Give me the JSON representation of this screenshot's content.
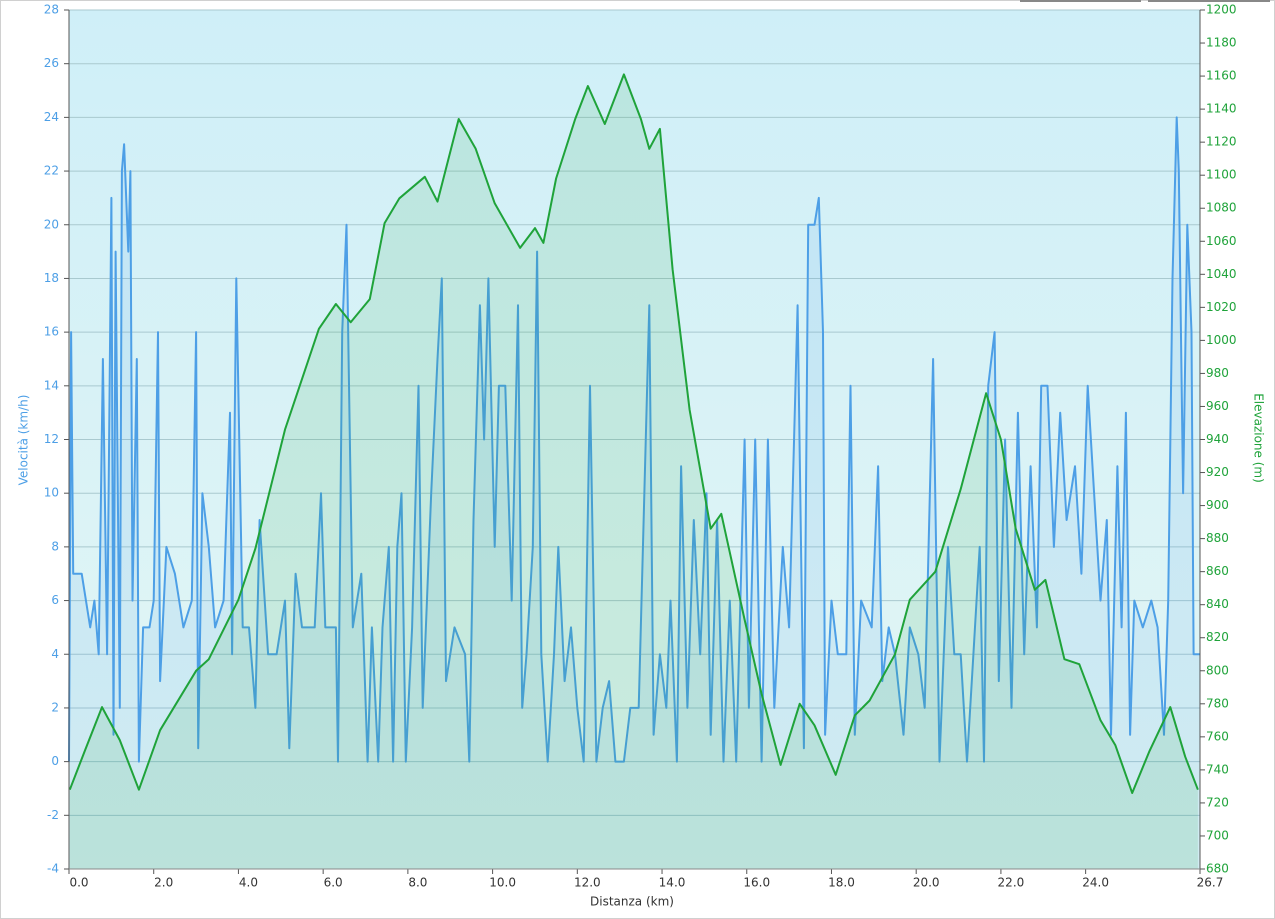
{
  "chart_data": {
    "type": "line",
    "xlabel": "Distanza  (km)",
    "ylabel": "Velocità (km/h)",
    "y2label": "Elevazione (m)",
    "grid": true,
    "fill": true,
    "xlim": [
      0,
      26.7
    ],
    "xticks": [
      {
        "value": 0,
        "label": "0.0"
      },
      {
        "value": 2,
        "label": "2.0"
      },
      {
        "value": 4,
        "label": "4.0"
      },
      {
        "value": 6,
        "label": "6.0"
      },
      {
        "value": 8,
        "label": "8.0"
      },
      {
        "value": 10,
        "label": "10.0"
      },
      {
        "value": 12,
        "label": "12.0"
      },
      {
        "value": 14,
        "label": "14.0"
      },
      {
        "value": 16,
        "label": "16.0"
      },
      {
        "value": 18,
        "label": "18.0"
      },
      {
        "value": 20,
        "label": "20.0"
      },
      {
        "value": 22,
        "label": "22.0"
      },
      {
        "value": 24,
        "label": "24.0"
      },
      26.7
    ],
    "ylim": [
      -4,
      28
    ],
    "yticks": [
      -4,
      -2,
      0,
      2,
      4,
      6,
      8,
      10,
      12,
      14,
      16,
      18,
      20,
      22,
      24,
      26,
      28
    ],
    "y2lim": [
      680,
      1200
    ],
    "y2ticks": [
      680,
      700,
      720,
      740,
      760,
      780,
      800,
      820,
      840,
      860,
      880,
      900,
      920,
      940,
      960,
      980,
      1000,
      1020,
      1040,
      1060,
      1080,
      1100,
      1120,
      1140,
      1160,
      1180,
      1200
    ],
    "series": [
      {
        "color": "#4d9fe6",
        "x": [
          0.0,
          0.05,
          0.1,
          0.3,
          0.5,
          0.6,
          0.7,
          0.8,
          0.9,
          1.0,
          1.05,
          1.1,
          1.2,
          1.25,
          1.3,
          1.4,
          1.45,
          1.5,
          1.6,
          1.65,
          1.75,
          1.9,
          2.0,
          2.1,
          2.15,
          2.3,
          2.5,
          2.7,
          2.9,
          3.0,
          3.05,
          3.15,
          3.3,
          3.45,
          3.65,
          3.8,
          3.85,
          3.95,
          4.1,
          4.25,
          4.4,
          4.5,
          4.7,
          4.9,
          5.1,
          5.2,
          5.35,
          5.5,
          5.8,
          5.95,
          6.05,
          6.3,
          6.35,
          6.45,
          6.55,
          6.7,
          6.9,
          7.05,
          7.15,
          7.3,
          7.4,
          7.55,
          7.65,
          7.75,
          7.85,
          7.95,
          8.1,
          8.25,
          8.35,
          8.55,
          8.7,
          8.8,
          8.9,
          9.1,
          9.35,
          9.45,
          9.55,
          9.7,
          9.8,
          9.9,
          10.05,
          10.15,
          10.3,
          10.45,
          10.6,
          10.7,
          10.8,
          10.95,
          11.05,
          11.15,
          11.3,
          11.45,
          11.55,
          11.7,
          11.85,
          12.0,
          12.15,
          12.3,
          12.45,
          12.6,
          12.75,
          12.9,
          13.1,
          13.25,
          13.45,
          13.7,
          13.8,
          13.95,
          14.1,
          14.2,
          14.35,
          14.45,
          14.6,
          14.75,
          14.9,
          15.05,
          15.15,
          15.3,
          15.45,
          15.6,
          15.75,
          15.95,
          16.05,
          16.2,
          16.35,
          16.5,
          16.65,
          16.85,
          17.0,
          17.2,
          17.35,
          17.45,
          17.6,
          17.7,
          17.8,
          17.85,
          18.0,
          18.15,
          18.35,
          18.45,
          18.55,
          18.7,
          18.95,
          19.1,
          19.2,
          19.35,
          19.5,
          19.7,
          19.85,
          20.05,
          20.2,
          20.4,
          20.55,
          20.75,
          20.9,
          21.05,
          21.2,
          21.35,
          21.5,
          21.6,
          21.7,
          21.85,
          21.95,
          22.1,
          22.25,
          22.4,
          22.55,
          22.7,
          22.85,
          22.95,
          23.1,
          23.25,
          23.4,
          23.55,
          23.75,
          23.9,
          24.05,
          24.2,
          24.35,
          24.5,
          24.6,
          24.75,
          24.85,
          24.95,
          25.05,
          25.15,
          25.35,
          25.55,
          25.7,
          25.85,
          25.95,
          26.05,
          26.15,
          26.2,
          26.3,
          26.4,
          26.5,
          26.55,
          26.7
        ],
        "values": [
          0,
          16,
          7,
          7,
          5,
          6,
          4,
          15,
          4,
          21,
          1,
          19,
          2,
          22,
          23,
          19,
          22,
          6,
          15,
          0,
          5,
          5,
          6,
          16,
          3,
          8,
          7,
          5,
          6,
          16,
          0.5,
          10,
          8,
          5,
          6,
          13,
          4,
          18,
          5,
          5,
          2,
          9,
          4,
          4,
          6,
          0.5,
          7,
          5,
          5,
          10,
          5,
          5,
          0,
          16,
          20,
          5,
          7,
          0,
          5,
          0,
          5,
          8,
          0,
          8,
          10,
          0,
          5,
          14,
          2,
          10,
          15,
          18,
          3,
          5,
          4,
          0,
          9,
          17,
          12,
          18,
          8,
          14,
          14,
          6,
          17,
          2,
          4,
          8,
          19,
          4,
          0,
          4,
          8,
          3,
          5,
          2,
          0,
          14,
          0,
          2,
          3,
          0,
          0,
          2,
          2,
          17,
          1,
          4,
          2,
          6,
          0,
          11,
          2,
          9,
          4,
          10,
          1,
          9,
          0,
          6,
          0,
          12,
          2,
          12,
          0,
          12,
          2,
          8,
          5,
          17,
          0.5,
          20,
          20,
          21,
          16,
          1,
          6,
          4,
          4,
          14,
          1,
          6,
          5,
          11,
          3,
          5,
          4,
          1,
          5,
          4,
          2,
          15,
          0,
          8,
          4,
          4,
          0,
          4,
          8,
          0,
          14,
          16,
          3,
          12,
          2,
          13,
          4,
          11,
          5,
          14,
          14,
          8,
          13,
          9,
          11,
          7,
          14,
          10,
          6,
          9,
          1,
          11,
          5,
          13,
          1,
          6,
          5,
          6,
          5,
          1,
          6,
          18,
          24,
          22,
          10,
          20,
          16,
          4,
          4
        ]
      },
      {
        "color": "#1fa33a",
        "axis": "y2",
        "x": [
          0.02,
          0.38,
          0.78,
          1.2,
          1.65,
          2.15,
          3.0,
          3.3,
          4.0,
          4.4,
          5.1,
          5.9,
          6.3,
          6.65,
          7.1,
          7.45,
          7.8,
          8.4,
          8.7,
          9.2,
          9.6,
          10.05,
          10.65,
          11.0,
          11.2,
          11.5,
          11.95,
          12.25,
          12.65,
          13.1,
          13.5,
          13.7,
          13.95,
          14.25,
          14.65,
          15.15,
          15.4,
          15.95,
          16.35,
          16.8,
          17.25,
          17.6,
          18.1,
          18.55,
          18.9,
          19.5,
          19.85,
          20.45,
          21.05,
          21.65,
          22.0,
          22.35,
          22.8,
          23.05,
          23.5,
          23.85,
          24.35,
          24.7,
          25.1,
          25.5,
          26.0,
          26.35,
          26.65
        ],
        "values": [
          728,
          752,
          778,
          758,
          728,
          764,
          800,
          807,
          843,
          874,
          946,
          1007,
          1022,
          1011,
          1025,
          1071,
          1086,
          1099,
          1084,
          1134,
          1116,
          1083,
          1056,
          1068,
          1059,
          1098,
          1134,
          1154,
          1131,
          1161,
          1134,
          1116,
          1128,
          1043,
          958,
          886,
          895,
          831,
          786,
          743,
          780,
          767,
          737,
          773,
          782,
          810,
          843,
          860,
          910,
          968,
          940,
          886,
          849,
          855,
          807,
          804,
          770,
          755,
          726,
          751,
          778,
          748,
          728
        ]
      }
    ]
  }
}
